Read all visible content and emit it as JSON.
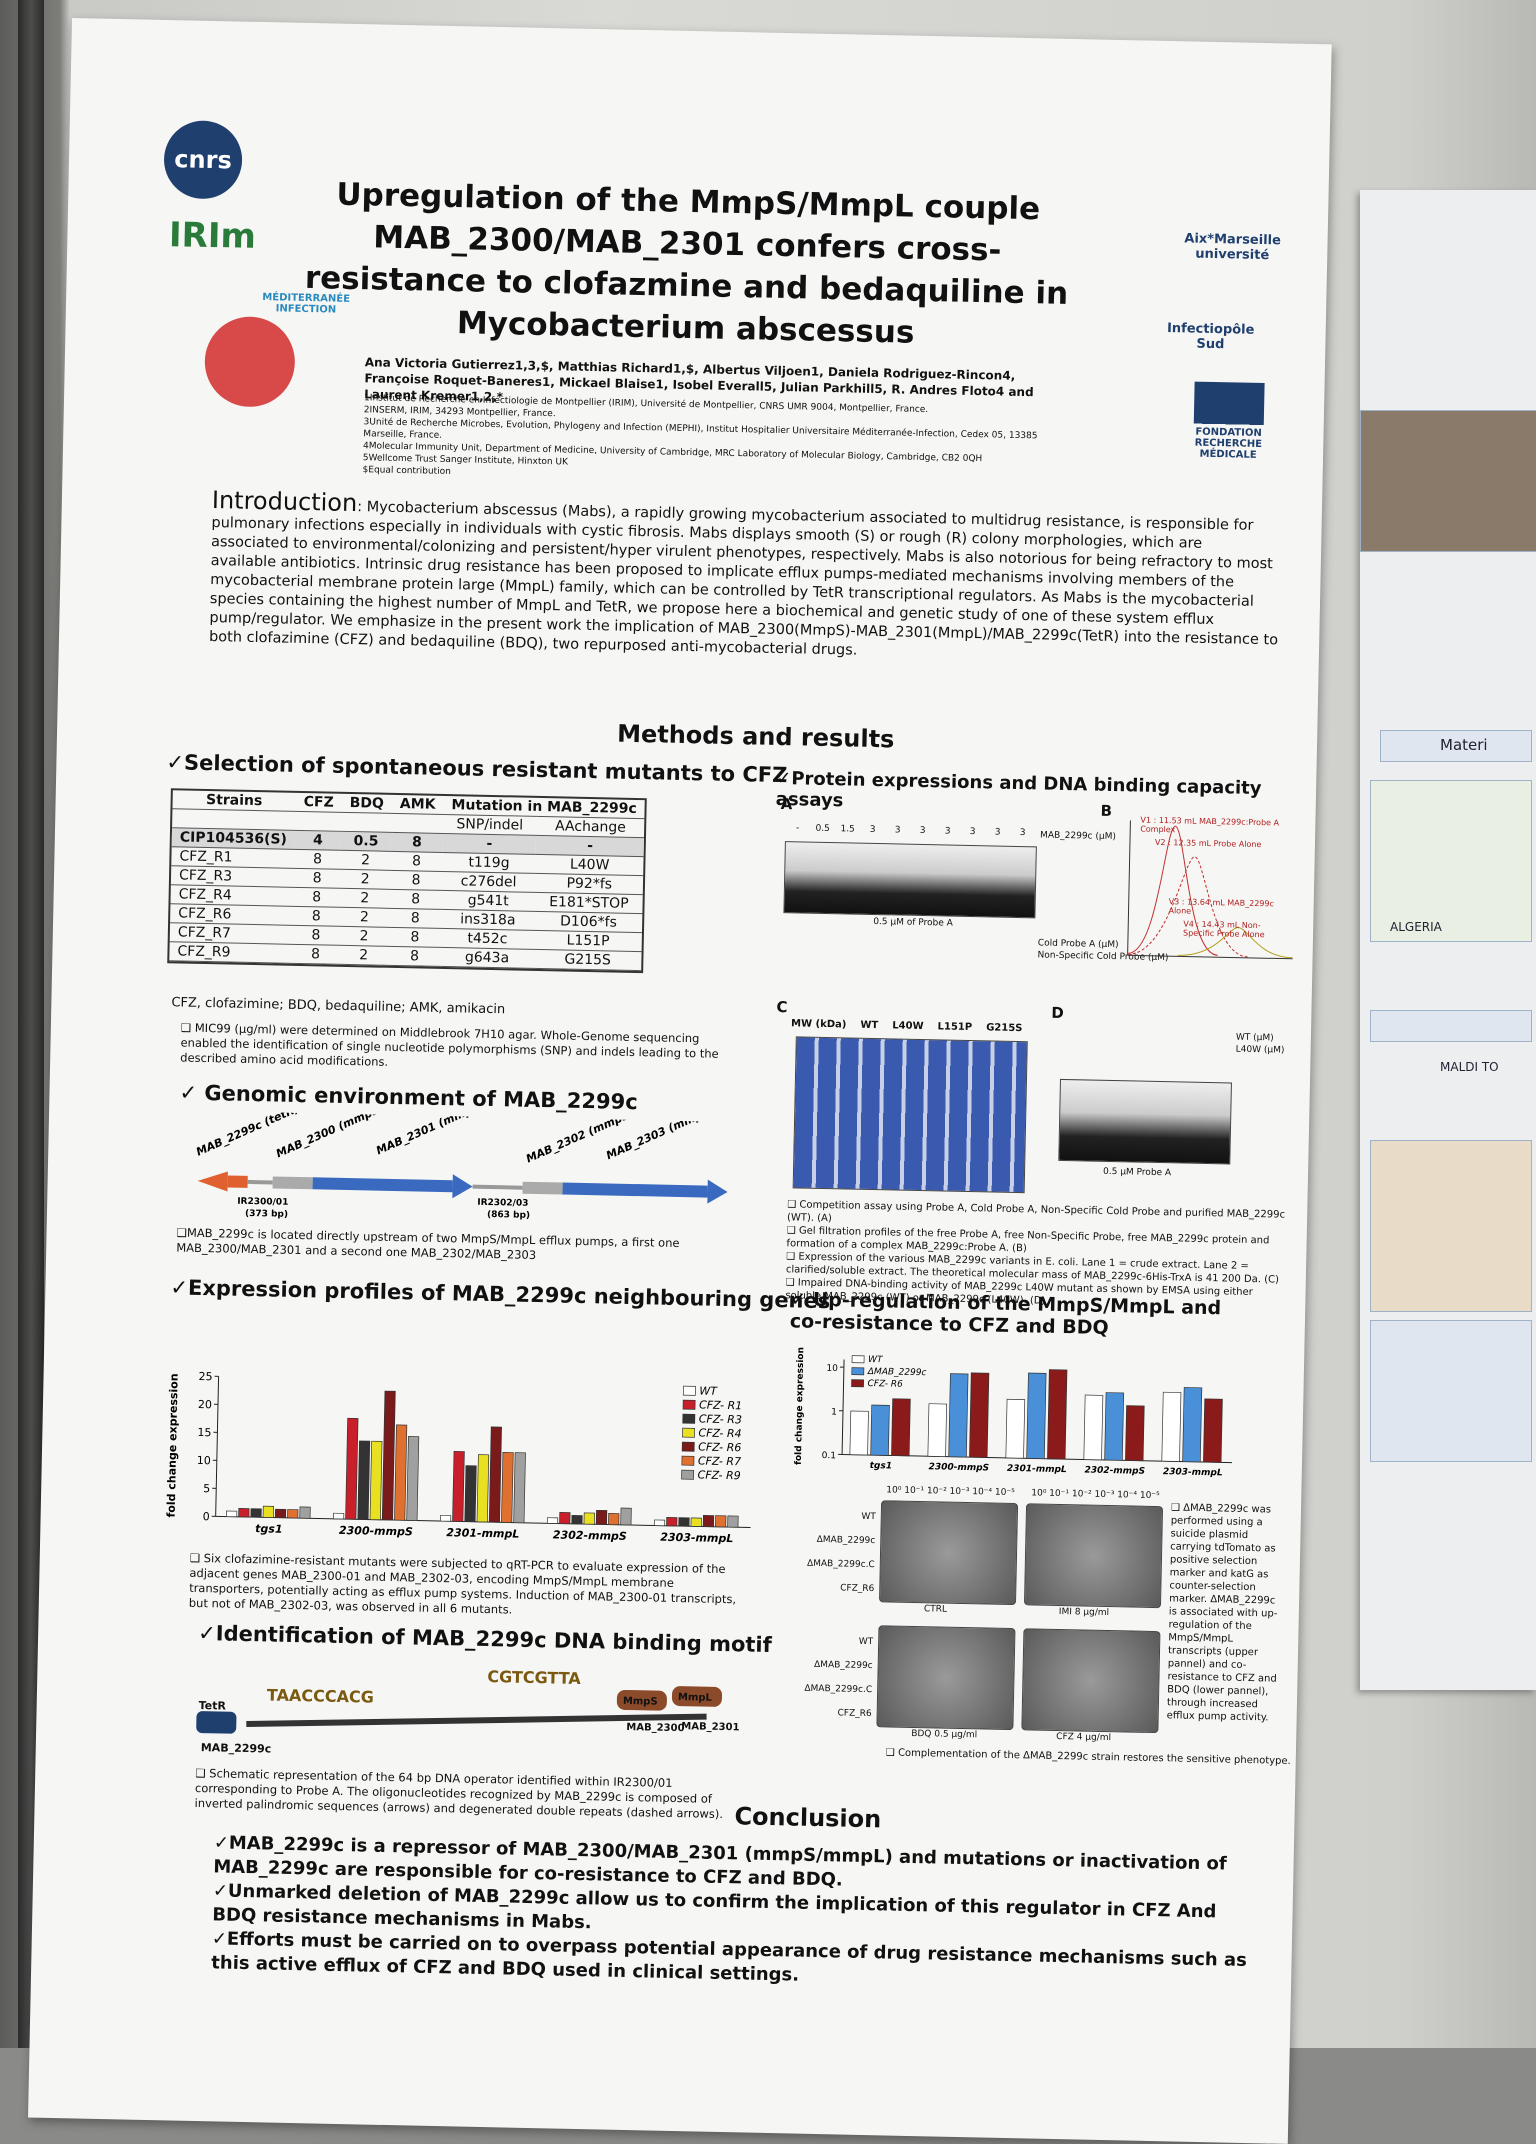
{
  "logos": [
    "cnrs",
    "IRIm",
    "MÉDITERRANÉE INFECTION",
    "Aix*Marseille université",
    "Infectiopôle Sud",
    "FONDATION RECHERCHE MÉDICALE"
  ],
  "header": {
    "title": "Upregulation of the MmpS/MmpL couple MAB_2300/MAB_2301 confers cross-resistance to clofazmine and bedaquiline in Mycobacterium abscessus",
    "authors": "Ana Victoria Gutierrez1,3,$, Matthias Richard1,$, Albertus Viljoen1, Daniela Rodriguez-Rincon4, Françoise Roquet-Baneres1, Mickael Blaise1, Isobel Everall5, Julian Parkhill5, R. Andres Floto4 and Laurent Kremer1,2,*",
    "affiliations": [
      "1Institut de Recherche en Infectiologie de Montpellier (IRIM), Université de Montpellier, CNRS UMR 9004, Montpellier, France.",
      "2INSERM, IRIM, 34293 Montpellier, France.",
      "3Unité de Recherche Microbes, Evolution, Phylogeny and Infection (MEPHI), Institut Hospitalier Universitaire Méditerranée-Infection, Cedex 05, 13385 Marseille, France.",
      "4Molecular Immunity Unit, Department of Medicine, University of Cambridge, MRC Laboratory of Molecular Biology, Cambridge, CB2 0QH",
      "5Wellcome Trust Sanger Institute, Hinxton UK",
      "$Equal contribution"
    ]
  },
  "introduction": {
    "heading": "Introduction",
    "text": ": Mycobacterium abscessus (Mabs), a rapidly growing mycobacterium associated to multidrug resistance, is responsible for pulmonary infections especially in individuals with cystic fibrosis. Mabs displays smooth (S) or rough (R) colony morphologies, which are associated to environmental/colonizing and persistent/hyper virulent phenotypes, respectively. Mabs is also notorious for being refractory to most available antibiotics. Intrinsic drug resistance has been proposed to implicate efflux pumps-mediated mechanisms involving members of the mycobacterial membrane protein large (MmpL) family, which can be controlled by TetR transcriptional regulators. As Mabs is the mycobacterial species containing the highest number of MmpL and TetR, we propose here a biochemical and genetic study of one of these system efflux pump/regulator. We emphasize in the present work the implication of MAB_2300(MmpS)-MAB_2301(MmpL)/MAB_2299c(TetR) into the resistance to both clofazimine (CFZ) and bedaquiline (BDQ), two repurposed anti-mycobacterial drugs."
  },
  "methods_heading": "Methods and results",
  "selection": {
    "heading": "✓Selection of spontaneous resistant mutants to CFZ",
    "table": {
      "columns": [
        "Strains",
        "CFZ",
        "BDQ",
        "AMK",
        "Mutation in MAB_2299c"
      ],
      "subcolumns": [
        "SNP/indel",
        "AAchange"
      ],
      "rows": [
        [
          "CIP104536(S)",
          4,
          0.5,
          8,
          "-",
          "-"
        ],
        [
          "CFZ_R1",
          8,
          2,
          8,
          "t119g",
          "L40W"
        ],
        [
          "CFZ_R3",
          8,
          2,
          8,
          "c276del",
          "P92*fs"
        ],
        [
          "CFZ_R4",
          8,
          2,
          8,
          "g541t",
          "E181*STOP"
        ],
        [
          "CFZ_R6",
          8,
          2,
          8,
          "ins318a",
          "D106*fs"
        ],
        [
          "CFZ_R7",
          8,
          2,
          8,
          "t452c",
          "L151P"
        ],
        [
          "CFZ_R9",
          8,
          2,
          8,
          "g643a",
          "G215S"
        ]
      ]
    },
    "footnote": "CFZ, clofazimine; BDQ, bedaquiline; AMK, amikacin",
    "note": "MIC99 (µg/ml) were determined on Middlebrook 7H10 agar. Whole-Genome sequencing enabled the identification of single nucleotide polymorphisms (SNP) and indels leading to the described amino acid modifications."
  },
  "genomic": {
    "heading": "✓ Genomic environment of MAB_2299c",
    "labels": [
      "MAB_2299c (tetR)",
      "MAB_2300 (mmpS)",
      "MAB_2301 (mmpL)",
      "MAB_2302 (mmpS)",
      "MAB_2303 (mmpL)",
      "IR2300/01",
      "(373 bp)",
      "IR2302/03",
      "(863 bp)"
    ],
    "note": "MAB_2299c is located directly upstream of two MmpS/MmpL efflux pumps, a first one MAB_2300/MAB_2301 and a second one MAB_2302/MAB_2303"
  },
  "expression": {
    "heading": "✓Expression profiles of MAB_2299c neighbouring genes",
    "chart": {
      "type": "bar",
      "y_label": "fold change expression",
      "categories": [
        "tgs1",
        "2300-mmpS",
        "2301-mmpL",
        "2302-mmpS",
        "2303-mmpL"
      ],
      "series": [
        {
          "name": "WT",
          "color": "#ffffff",
          "values": [
            1,
            1,
            1,
            1,
            1
          ]
        },
        {
          "name": "CFZ- R1",
          "color": "#c8202a",
          "values": [
            1.5,
            18,
            12.5,
            2,
            1.5
          ]
        },
        {
          "name": "CFZ- R3",
          "color": "#333333",
          "values": [
            1.5,
            14,
            10,
            1.5,
            1.5
          ]
        },
        {
          "name": "CFZ- R4",
          "color": "#e8e020",
          "values": [
            2,
            14,
            12,
            2,
            1.5
          ]
        },
        {
          "name": "CFZ- R6",
          "color": "#7a1a1a",
          "values": [
            1.5,
            23,
            17,
            2.5,
            2
          ]
        },
        {
          "name": "CFZ- R7",
          "color": "#e07030",
          "values": [
            1.5,
            17,
            12.5,
            2,
            2
          ]
        },
        {
          "name": "CFZ- R9",
          "color": "#a0a0a0",
          "values": [
            2,
            15,
            12.5,
            3,
            2
          ]
        }
      ],
      "ylim": [
        0,
        25
      ],
      "yticks": [
        0,
        5,
        10,
        15,
        20,
        25
      ],
      "log_scale": false,
      "legend": "top-right"
    },
    "note": "Six clofazimine-resistant mutants were subjected to qRT-PCR to evaluate expression of the adjacent genes MAB_2300-01 and MAB_2302-03, encoding MmpS/MmpL membrane transporters, potentially acting as efflux pump systems. Induction of MAB_2300-01 transcripts, but not of MAB_2302-03, was observed in all 6 mutants."
  },
  "motif": {
    "heading": "✓Identification of MAB_2299c DNA binding motif",
    "labels": [
      "TetR",
      "MAB_2299c",
      "TAACCCACG",
      "CGTCGTTA",
      "MmpS",
      "MmpL",
      "MAB_2300",
      "MAB_2301"
    ],
    "note": "Schematic representation of the 64 bp DNA operator identified within IR2300/01 corresponding to Probe A. The oligonucleotides recognized by MAB_2299c is composed of inverted palindromic sequences (arrows) and degenerated double repeats (dashed arrows)."
  },
  "protein": {
    "heading": "✓Protein expressions and DNA binding capacity assays",
    "panels": [
      "A",
      "B",
      "C",
      "D"
    ],
    "panel_a": {
      "lanes": [
        "-",
        "0.5",
        "1.5",
        "3",
        "3",
        "3",
        "3",
        "3",
        "3",
        "3"
      ],
      "labels": [
        "MAB_2299c (µM)",
        "0.5 µM of Probe A",
        "Cold Probe A (µM)",
        "Non-Specific Cold Probe (µM)"
      ]
    },
    "panel_b": [
      "V1 : 11.53 mL MAB_2299c:Probe A Complex",
      "V2 : 12.35 mL Probe Alone",
      "V3 : 13.64 mL MAB_2299c Alone",
      "V4 : 14.43 mL Non-Specific Probe Alone"
    ],
    "panel_c": [
      "MW (kDa)",
      "WT",
      "L40W",
      "L151P",
      "G215S"
    ],
    "panel_d": [
      "WT (µM)",
      "L40W (µM)",
      "0.5 µM Probe A"
    ],
    "notes": [
      "Competition assay using Probe A, Cold Probe A, Non-Specific Cold Probe and purified MAB_2299c (WT). (A)",
      "Gel filtration profiles of the free Probe A, free Non-Specific Probe, free MAB_2299c protein and formation of a complex MAB_2299c:Probe A. (B)",
      "Expression of the various MAB_2299c variants in E. coli. Lane 1 = crude extract. Lane 2 = clarified/soluble extract. The theoretical molecular mass of MAB_2299c-6His-TrxA is 41 200 Da. (C)",
      "Impaired DNA-binding activity of MAB_2299c L40W mutant as shown by EMSA using either soluble MAB_2299c (WT) or MAB_2299c (L40W). (D)"
    ]
  },
  "upregulation": {
    "heading": "✓ Up-regulation of the MmpS/MmpL and co-resistance to CFZ and BDQ",
    "chart": {
      "type": "bar",
      "y_label": "fold change expression",
      "categories": [
        "tgs1",
        "2300-mmpS",
        "2301-mmpL",
        "2302-mmpS",
        "2303-mmpL"
      ],
      "series": [
        {
          "name": "WT",
          "color": "#ffffff",
          "values": [
            1,
            1.6,
            2.2,
            3,
            3.8
          ]
        },
        {
          "name": "ΔMAB_2299c",
          "color": "#4a90d9",
          "values": [
            1.4,
            8,
            9,
            3.5,
            5
          ]
        },
        {
          "name": "CFZ- R6",
          "color": "#8b1a1a",
          "values": [
            2,
            8.5,
            11,
            1.8,
            2.8
          ]
        }
      ],
      "ylim": [
        0.1,
        15
      ],
      "yticks": [
        0.1,
        1,
        10
      ],
      "log_scale": true,
      "legend": "top-left"
    },
    "strains": [
      "WT",
      "ΔMAB_2299c",
      "ΔMAB_2299c.C",
      "CFZ_R6"
    ],
    "dilutions": "10⁰ 10⁻¹ 10⁻² 10⁻³ 10⁻⁴ 10⁻⁵",
    "conditions": [
      "CTRL",
      "IMI 8 µg/ml",
      "BDQ 0.5 µg/ml",
      "CFZ 4 µg/ml"
    ],
    "note": "ΔMAB_2299c was performed using a suicide plasmid carrying tdTomato as positive selection marker and katG as counter-selection marker. ΔMAB_2299c is associated with up-regulation of the MmpS/MmpL transcripts (upper pannel) and co-resistance to CFZ and BDQ (lower pannel), through increased efflux pump activity.",
    "complementation": "Complementation of the ΔMAB_2299c strain restores the sensitive phenotype."
  },
  "conclusion": {
    "heading": "Conclusion",
    "points": [
      "✓MAB_2299c is a repressor of MAB_2300/MAB_2301 (mmpS/mmpL) and mutations or inactivation of MAB_2299c are responsible for co-resistance to CFZ and BDQ.",
      "✓Unmarked deletion of MAB_2299c allow us to confirm the implication of this regulator in CFZ And BDQ resistance mechanisms in Mabs.",
      "✓Efforts must be carried on to overpass potential appearance of drug resistance mechanisms such as this active efflux of CFZ and BDQ used in clinical settings."
    ]
  },
  "background_poster": [
    "Materi",
    "ALGERIA",
    "MALDI TO"
  ]
}
